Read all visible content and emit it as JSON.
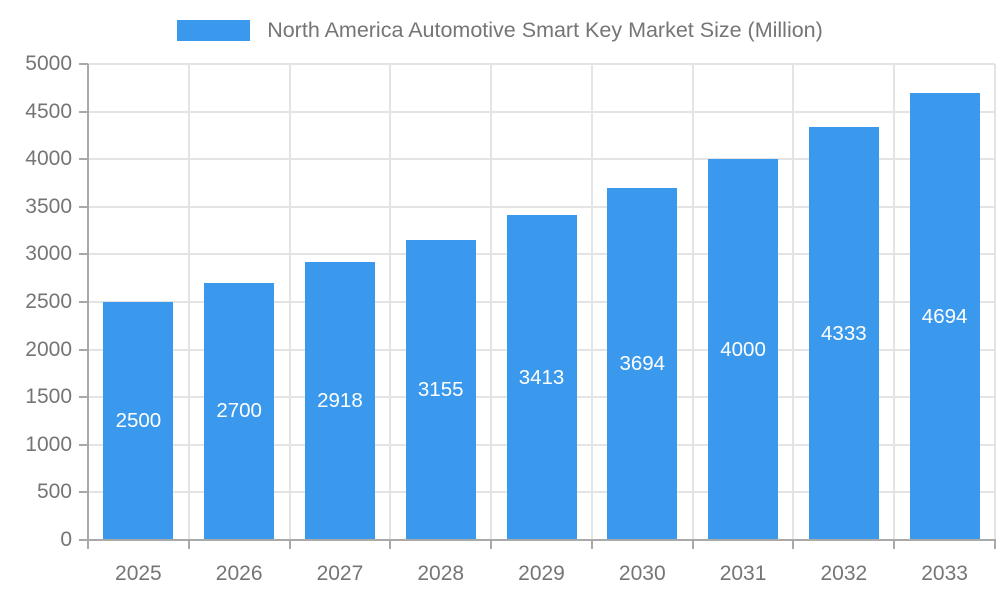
{
  "legend": {
    "label": "North America Automotive Smart Key Market Size (Million)"
  },
  "chart_data": {
    "type": "bar",
    "title": "North America Automotive Smart Key Market Size (Million)",
    "categories": [
      "2025",
      "2026",
      "2027",
      "2028",
      "2029",
      "2030",
      "2031",
      "2032",
      "2033"
    ],
    "values": [
      2500,
      2700,
      2918,
      3155,
      3413,
      3694,
      4000,
      4333,
      4694
    ],
    "xlabel": "",
    "ylabel": "",
    "ylim": [
      0,
      5000
    ],
    "ytick_step": 500,
    "ytick_labels": [
      "0",
      "500",
      "1000",
      "1500",
      "2000",
      "2500",
      "3000",
      "3500",
      "4000",
      "4500",
      "5000"
    ],
    "grid": true,
    "legend_position": "top-center",
    "value_labels": "inside-middle",
    "colors": {
      "bar": "#3a99ec",
      "value_label": "#ffffff",
      "axis": "#a9a9a9",
      "grid": "#e4e4e4",
      "tick_text": "#757575",
      "legend_text": "#757575",
      "background": "#ffffff"
    }
  }
}
